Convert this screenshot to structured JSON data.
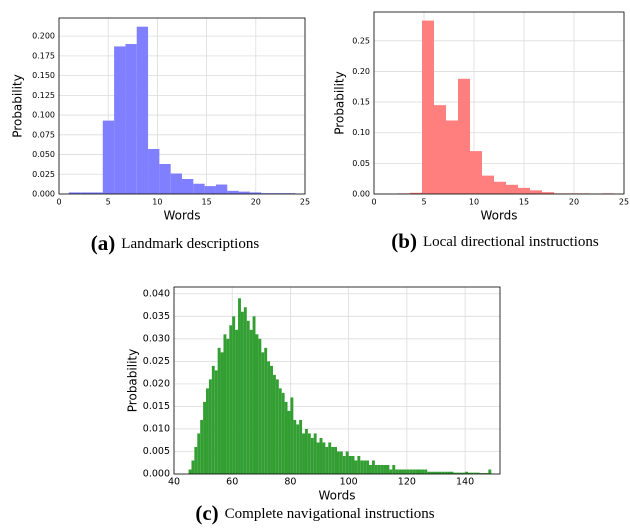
{
  "chart_data": [
    {
      "type": "histogram",
      "color": "#7f7fff",
      "grid": true,
      "xlabel": "Words",
      "ylabel": "Probability",
      "caption_label": "(a)",
      "caption": "Landmark descriptions",
      "bins": [
        1,
        2.15,
        3.3,
        4.45,
        5.6,
        6.75,
        7.9,
        9.05,
        10.2,
        11.35,
        12.5,
        13.65,
        14.8,
        15.95,
        17.1,
        18.25,
        19.4,
        20.55,
        21.7,
        22.85,
        24
      ],
      "values": [
        0.002,
        0.002,
        0.002,
        0.093,
        0.187,
        0.19,
        0.212,
        0.057,
        0.038,
        0.026,
        0.019,
        0.013,
        0.01,
        0.012,
        0.004,
        0.003,
        0.002,
        0.001,
        0.001,
        0.001
      ],
      "xlim": [
        0,
        25
      ],
      "xticks": [
        0,
        5,
        10,
        15,
        20,
        25
      ],
      "ylim": [
        0,
        0.223
      ],
      "yticks": [
        {
          "value": 0,
          "label": "0.000"
        },
        {
          "value": 0.025,
          "label": "0.025"
        },
        {
          "value": 0.05,
          "label": "0.050"
        },
        {
          "value": 0.075,
          "label": "0.075"
        },
        {
          "value": 0.1,
          "label": "0.100"
        },
        {
          "value": 0.125,
          "label": "0.125"
        },
        {
          "value": 0.15,
          "label": "0.150"
        },
        {
          "value": 0.175,
          "label": "0.175"
        },
        {
          "value": 0.2,
          "label": "0.200"
        }
      ]
    },
    {
      "type": "histogram",
      "color": "#ff7f7f",
      "grid": true,
      "xlabel": "Words",
      "ylabel": "Probability",
      "caption_label": "(b)",
      "caption": "Local directional instructions",
      "bins": [
        0,
        1.2,
        2.4,
        3.6,
        4.8,
        6.0,
        7.2,
        8.4,
        9.6,
        10.8,
        12.0,
        13.2,
        14.4,
        15.6,
        16.8,
        18.0,
        19.2,
        20.4,
        21.6,
        22.8,
        24
      ],
      "values": [
        0,
        0,
        0.001,
        0.002,
        0.283,
        0.145,
        0.12,
        0.188,
        0.07,
        0.03,
        0.02,
        0.015,
        0.01,
        0.006,
        0.003,
        0.001,
        0.001,
        0.001,
        0,
        0.001
      ],
      "xlim": [
        0,
        25
      ],
      "xticks": [
        0,
        5,
        10,
        15,
        20,
        25
      ],
      "ylim": [
        0,
        0.297
      ],
      "yticks": [
        {
          "value": 0,
          "label": "0.00"
        },
        {
          "value": 0.05,
          "label": "0.05"
        },
        {
          "value": 0.1,
          "label": "0.10"
        },
        {
          "value": 0.15,
          "label": "0.15"
        },
        {
          "value": 0.2,
          "label": "0.20"
        },
        {
          "value": 0.25,
          "label": "0.25"
        }
      ]
    },
    {
      "type": "histogram",
      "color": "#339f33",
      "grid": true,
      "xlabel": "Words",
      "ylabel": "Probability",
      "caption_label": "(c)",
      "caption": "Complete navigational instructions",
      "bins": [
        45,
        46,
        47,
        48,
        49,
        50,
        51,
        52,
        53,
        54,
        55,
        56,
        57,
        58,
        59,
        60,
        61,
        62,
        63,
        64,
        65,
        66,
        67,
        68,
        69,
        70,
        71,
        72,
        73,
        74,
        75,
        76,
        77,
        78,
        79,
        80,
        81,
        82,
        83,
        84,
        85,
        86,
        87,
        88,
        89,
        90,
        91,
        92,
        93,
        94,
        95,
        96,
        97,
        98,
        99,
        100,
        101,
        102,
        103,
        104,
        105,
        106,
        107,
        108,
        109,
        110,
        111,
        112,
        113,
        114,
        115,
        116,
        117,
        118,
        119,
        120,
        121,
        122,
        123,
        124,
        125,
        126,
        127,
        128,
        129,
        130,
        131,
        132,
        133,
        134,
        135,
        136,
        137,
        138,
        139,
        140,
        141,
        142,
        143,
        144,
        145,
        146,
        147,
        148,
        149
      ],
      "values": [
        0.001,
        0.003,
        0.006,
        0.009,
        0.012,
        0.016,
        0.019,
        0.021,
        0.024,
        0.023,
        0.028,
        0.027,
        0.031,
        0.03,
        0.033,
        0.035,
        0.032,
        0.039,
        0.036,
        0.037,
        0.034,
        0.032,
        0.035,
        0.031,
        0.03,
        0.027,
        0.028,
        0.025,
        0.024,
        0.022,
        0.021,
        0.019,
        0.018,
        0.016,
        0.014,
        0.017,
        0.012,
        0.011,
        0.012,
        0.009,
        0.01,
        0.009,
        0.008,
        0.009,
        0.007,
        0.008,
        0.007,
        0.006,
        0.007,
        0.006,
        0.006,
        0.005,
        0.005,
        0.004,
        0.005,
        0.004,
        0.004,
        0.003,
        0.004,
        0.003,
        0.003,
        0.003,
        0.002,
        0.003,
        0.002,
        0.002,
        0.002,
        0.002,
        0.002,
        0.001,
        0.002,
        0.001,
        0.001,
        0.001,
        0.001,
        0.001,
        0.001,
        0.001,
        0.001,
        0.001,
        0.001,
        0.001,
        0.0005,
        0.0005,
        0.0005,
        0.0005,
        0.0005,
        0.0005,
        0.0005,
        0.0005,
        0.0005,
        0.0003,
        0.0003,
        0.0003,
        0.0003,
        0.0005,
        0.0003,
        0.0003,
        0.0003,
        0.0003,
        0.0002,
        0.0002,
        0.0002,
        0.001
      ],
      "xlim": [
        40,
        152
      ],
      "xticks": [
        40,
        60,
        80,
        100,
        120,
        140
      ],
      "ylim": [
        0,
        0.0415
      ],
      "yticks": [
        {
          "value": 0,
          "label": "0.000"
        },
        {
          "value": 0.005,
          "label": "0.005"
        },
        {
          "value": 0.01,
          "label": "0.010"
        },
        {
          "value": 0.015,
          "label": "0.015"
        },
        {
          "value": 0.02,
          "label": "0.020"
        },
        {
          "value": 0.025,
          "label": "0.025"
        },
        {
          "value": 0.03,
          "label": "0.030"
        },
        {
          "value": 0.035,
          "label": "0.035"
        },
        {
          "value": 0.04,
          "label": "0.040"
        }
      ]
    }
  ]
}
